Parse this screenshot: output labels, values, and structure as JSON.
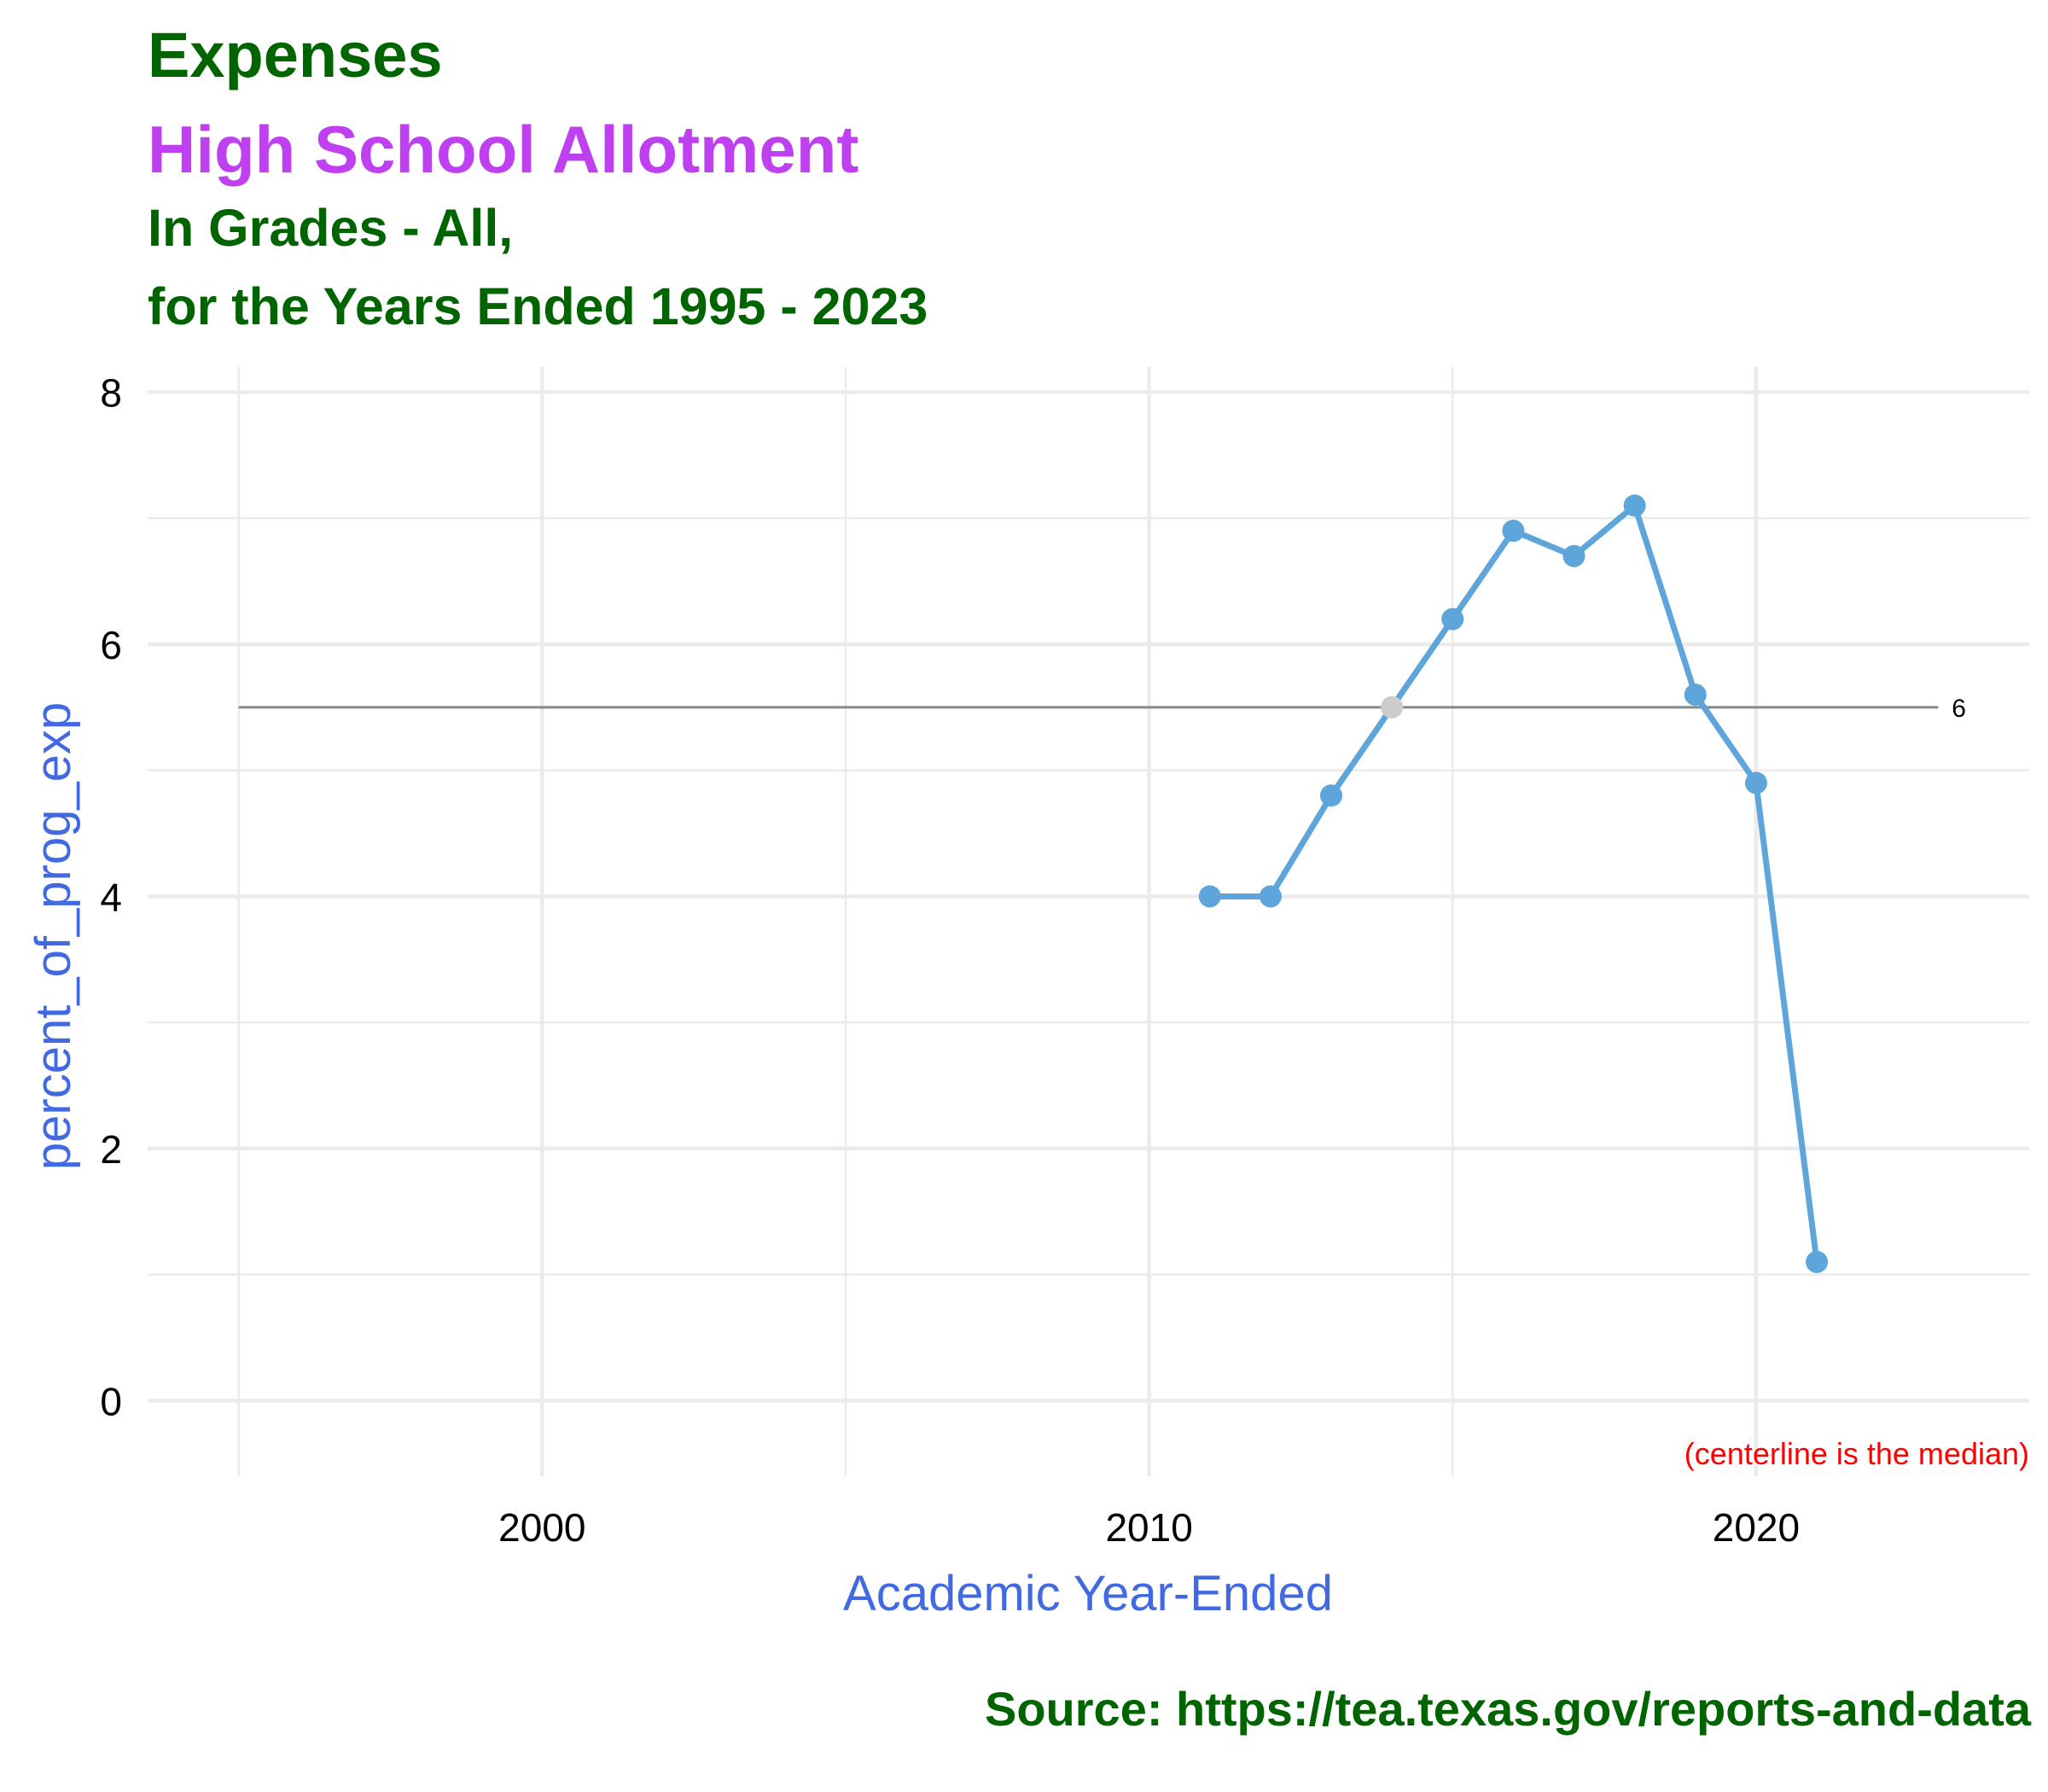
{
  "chart_data": {
    "type": "line",
    "title": "Expenses",
    "subtitle_lines": [
      "High School Allotment",
      "In Grades - All,",
      "for the Years Ended 1995 - 2023"
    ],
    "xlabel": "Academic Year-Ended",
    "ylabel": "percent_of_prog_exp",
    "xlim": [
      1993.5,
      2024.5
    ],
    "ylim": [
      -0.6,
      8.2
    ],
    "x_ticks": [
      2000,
      2010,
      2020
    ],
    "x_tick_labels": [
      "2000",
      "2010",
      "2020"
    ],
    "y_ticks": [
      0,
      2,
      4,
      6,
      8
    ],
    "y_tick_labels": [
      "0",
      "2",
      "4",
      "6",
      "8"
    ],
    "grid": true,
    "series": [
      {
        "x": [
          2011,
          2012,
          2013,
          2014,
          2015,
          2016,
          2017,
          2018,
          2019,
          2020,
          2021
        ],
        "values": [
          4.0,
          4.0,
          4.8,
          5.5,
          6.2,
          6.9,
          6.7,
          7.1,
          5.6,
          4.9,
          1.1
        ],
        "color": "#5DA5DA"
      }
    ],
    "highlight_point": {
      "x": 2014,
      "y": 5.5,
      "color": "#CCCCCC"
    },
    "centerline": {
      "value": 5.5,
      "x_range": [
        1995,
        2023
      ],
      "label": "6",
      "color": "#888888"
    },
    "annotation": {
      "text": "(centerline is the median)",
      "color": "#FF0000"
    }
  },
  "source": "Source:  https://tea.texas.gov/reports-and-data",
  "colors": {
    "title": "#006400",
    "subtitle": "#BF40F0",
    "axis_title": "#4169E1",
    "grid": "#EBEBEB",
    "line": "#5DA5DA",
    "annotation": "#FF0000"
  }
}
